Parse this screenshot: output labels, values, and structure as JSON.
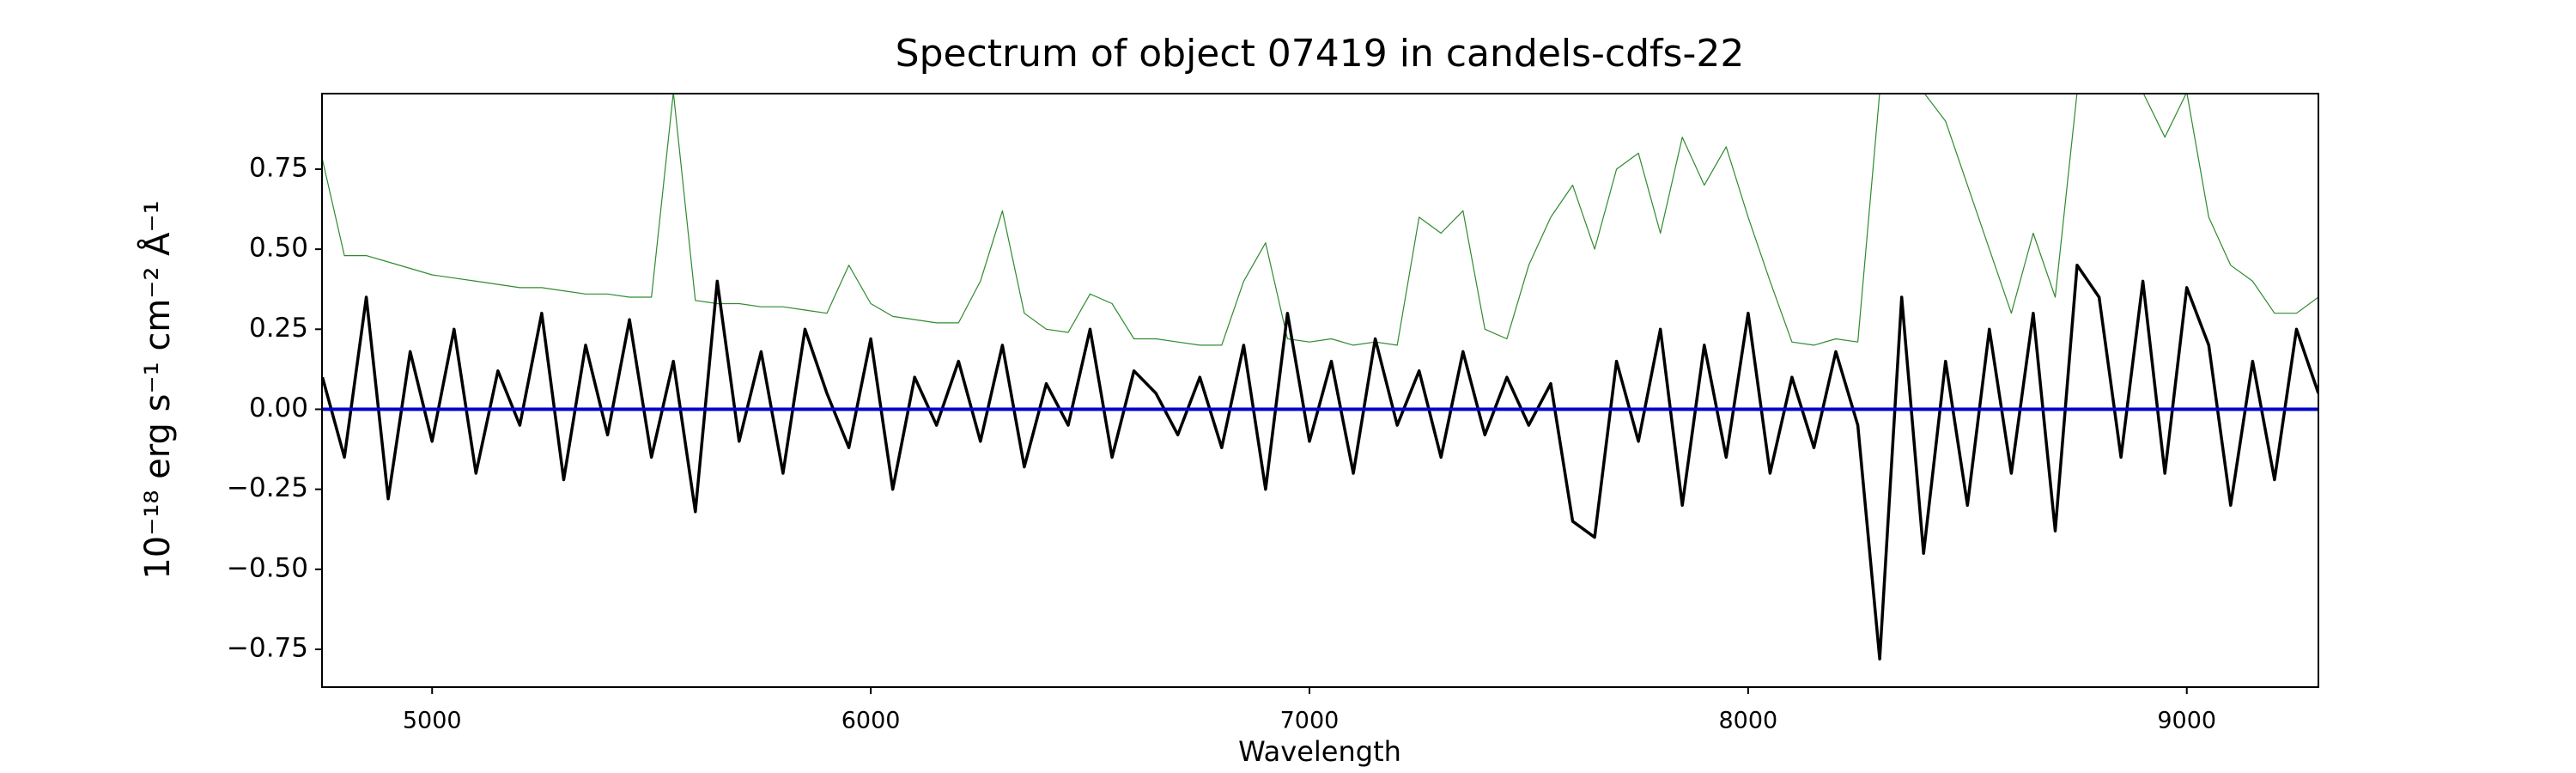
{
  "chart_data": {
    "type": "line",
    "title": "Spectrum of object 07419 in candels-cdfs-22",
    "xlabel": "Wavelength",
    "ylabel": "10⁻¹⁸ erg s⁻¹ cm⁻² Å⁻¹",
    "xlim": [
      4749,
      9300
    ],
    "ylim": [
      -0.868,
      0.986
    ],
    "xticks": [
      5000,
      6000,
      7000,
      8000,
      9000
    ],
    "yticks": [
      0.75,
      {
        "value": 0.5,
        "label": "0.50"
      },
      0.25,
      {
        "value": 0,
        "label": "0.00"
      },
      {
        "value": -0.25,
        "label": "−0.25"
      },
      {
        "value": -0.5,
        "label": "−0.50"
      },
      {
        "value": -0.75,
        "label": "−0.75"
      }
    ],
    "x": [
      4750,
      4800,
      4850,
      4900,
      4950,
      5000,
      5050,
      5100,
      5150,
      5200,
      5250,
      5300,
      5350,
      5400,
      5450,
      5500,
      5550,
      5600,
      5650,
      5700,
      5750,
      5800,
      5850,
      5900,
      5950,
      6000,
      6050,
      6100,
      6150,
      6200,
      6250,
      6300,
      6350,
      6400,
      6450,
      6500,
      6550,
      6600,
      6650,
      6700,
      6750,
      6800,
      6850,
      6900,
      6950,
      7000,
      7050,
      7100,
      7150,
      7200,
      7250,
      7300,
      7350,
      7400,
      7450,
      7500,
      7550,
      7600,
      7650,
      7700,
      7750,
      7800,
      7850,
      7900,
      7950,
      8000,
      8050,
      8100,
      8150,
      8200,
      8250,
      8300,
      8350,
      8400,
      8450,
      8500,
      8550,
      8600,
      8650,
      8700,
      8750,
      8800,
      8850,
      8900,
      8950,
      9000,
      9050,
      9100,
      9150,
      9200,
      9250,
      9300
    ],
    "series": [
      {
        "color": "#2e8b2e",
        "width": 1.2,
        "values": [
          0.78,
          0.48,
          0.48,
          0.46,
          0.44,
          0.42,
          0.41,
          0.4,
          0.39,
          0.38,
          0.38,
          0.37,
          0.36,
          0.36,
          0.35,
          0.35,
          0.99,
          0.34,
          0.33,
          0.33,
          0.32,
          0.32,
          0.31,
          0.3,
          0.45,
          0.33,
          0.29,
          0.28,
          0.27,
          0.27,
          0.4,
          0.62,
          0.3,
          0.25,
          0.24,
          0.36,
          0.33,
          0.22,
          0.22,
          0.21,
          0.2,
          0.2,
          0.4,
          0.52,
          0.22,
          0.21,
          0.22,
          0.2,
          0.21,
          0.2,
          0.6,
          0.55,
          0.62,
          0.25,
          0.22,
          0.45,
          0.6,
          0.7,
          0.5,
          0.75,
          0.8,
          0.55,
          0.85,
          0.7,
          0.82,
          0.6,
          0.4,
          0.21,
          0.2,
          0.22,
          0.21,
          0.99,
          0.99,
          0.99,
          0.9,
          0.7,
          0.5,
          0.3,
          0.55,
          0.35,
          0.99,
          0.99,
          0.99,
          0.99,
          0.85,
          0.99,
          0.6,
          0.45,
          0.4,
          0.3,
          0.3,
          0.35
        ]
      },
      {
        "color": "#000000",
        "width": 3.5,
        "values": [
          0.1,
          -0.15,
          0.35,
          -0.28,
          0.18,
          -0.1,
          0.25,
          -0.2,
          0.12,
          -0.05,
          0.3,
          -0.22,
          0.2,
          -0.08,
          0.28,
          -0.15,
          0.15,
          -0.32,
          0.4,
          -0.1,
          0.18,
          -0.2,
          0.25,
          0.05,
          -0.12,
          0.22,
          -0.25,
          0.1,
          -0.05,
          0.15,
          -0.1,
          0.2,
          -0.18,
          0.08,
          -0.05,
          0.25,
          -0.15,
          0.12,
          0.05,
          -0.08,
          0.1,
          -0.12,
          0.2,
          -0.25,
          0.3,
          -0.1,
          0.15,
          -0.2,
          0.22,
          -0.05,
          0.12,
          -0.15,
          0.18,
          -0.08,
          0.1,
          -0.05,
          0.08,
          -0.35,
          -0.4,
          0.15,
          -0.1,
          0.25,
          -0.3,
          0.2,
          -0.15,
          0.3,
          -0.2,
          0.1,
          -0.12,
          0.18,
          -0.05,
          -0.78,
          0.35,
          -0.45,
          0.15,
          -0.3,
          0.25,
          -0.2,
          0.3,
          -0.38,
          0.45,
          0.35,
          -0.15,
          0.4,
          -0.2,
          0.38,
          0.2,
          -0.3,
          0.15,
          -0.22,
          0.25,
          0.05
        ]
      },
      {
        "color": "#0000cc",
        "width": 4,
        "x": [
          4749,
          9300
        ],
        "values": [
          0,
          0
        ]
      }
    ]
  }
}
